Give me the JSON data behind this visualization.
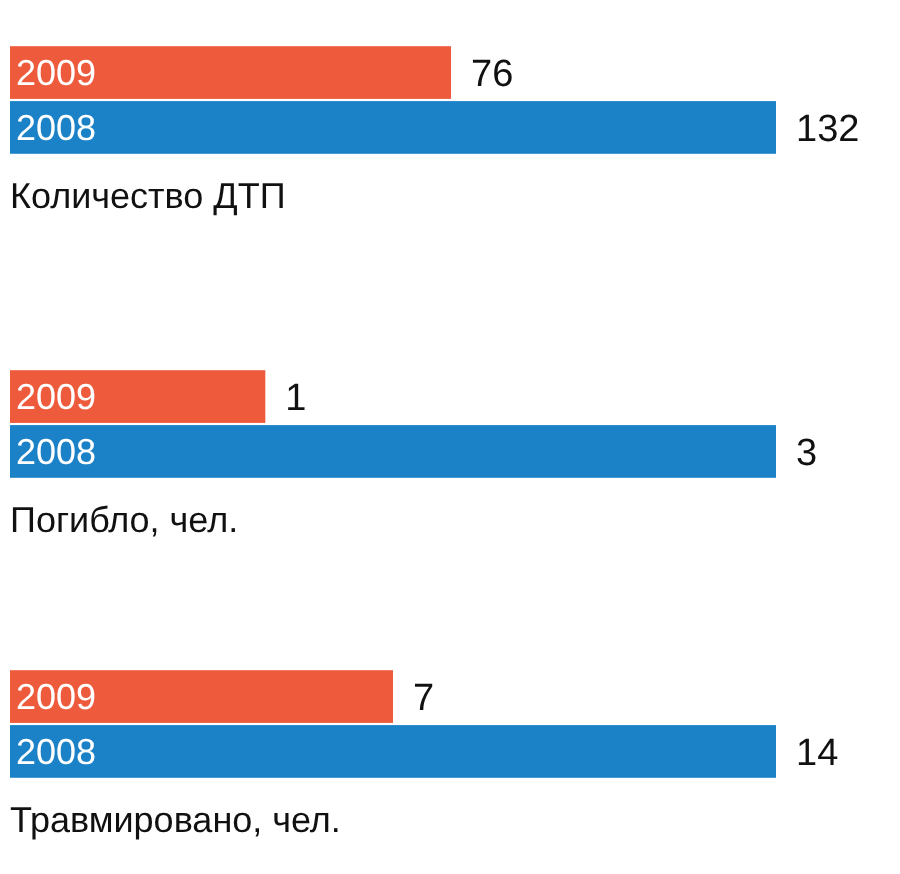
{
  "chart_data": [
    {
      "type": "bar",
      "orientation": "horizontal",
      "xlabel": "Количество ДТП",
      "categories": [
        "2009",
        "2008"
      ],
      "values": [
        76,
        132
      ],
      "colors": [
        "#ee5a3c",
        "#1c82c8"
      ],
      "data_labels": true
    },
    {
      "type": "bar",
      "orientation": "horizontal",
      "xlabel": "Погибло, чел.",
      "categories": [
        "2009",
        "2008"
      ],
      "values": [
        1,
        3
      ],
      "colors": [
        "#ee5a3c",
        "#1c82c8"
      ],
      "data_labels": true
    },
    {
      "type": "bar",
      "orientation": "horizontal",
      "xlabel": "Травмировано, чел.",
      "categories": [
        "2009",
        "2008"
      ],
      "values": [
        7,
        14
      ],
      "colors": [
        "#ee5a3c",
        "#1c82c8"
      ],
      "data_labels": true
    }
  ]
}
